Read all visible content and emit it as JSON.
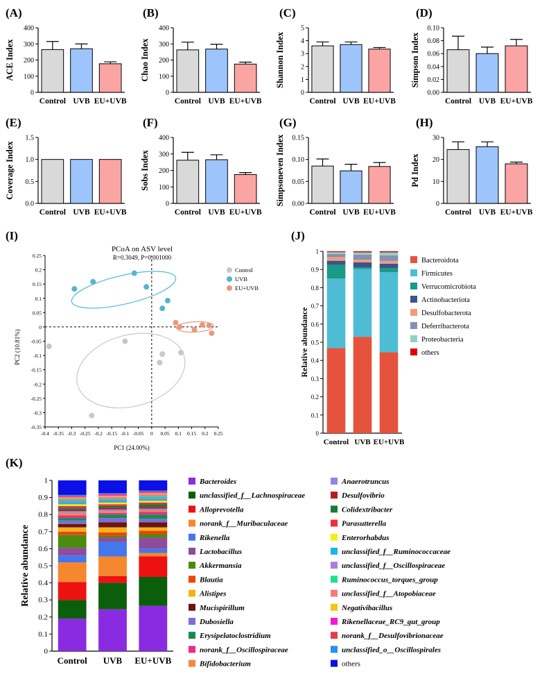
{
  "chart_data": [
    {
      "id": "A",
      "panel_label": "(A)",
      "type": "bar",
      "categories": [
        "Control",
        "UVB",
        "EU+UVB"
      ],
      "values": [
        265,
        270,
        177
      ],
      "errors": [
        50,
        30,
        12
      ],
      "colors": [
        "#d9d9d9",
        "#9ec5fb",
        "#fba4a4"
      ],
      "ylabel": "ACE Index",
      "ylim": [
        0,
        400
      ],
      "yticks": [
        "0",
        "100",
        "200",
        "300",
        "400"
      ]
    },
    {
      "id": "B",
      "panel_label": "(B)",
      "type": "bar",
      "categories": [
        "Control",
        "UVB",
        "EU+UVB"
      ],
      "values": [
        263,
        268,
        175
      ],
      "errors": [
        48,
        30,
        12
      ],
      "colors": [
        "#d9d9d9",
        "#9ec5fb",
        "#fba4a4"
      ],
      "ylabel": "Chao Index",
      "ylim": [
        0,
        400
      ],
      "yticks": [
        "0",
        "100",
        "200",
        "300",
        "400"
      ]
    },
    {
      "id": "C",
      "panel_label": "(C)",
      "type": "bar",
      "categories": [
        "Control",
        "UVB",
        "EU+UVB"
      ],
      "values": [
        3.6,
        3.7,
        3.35
      ],
      "errors": [
        0.3,
        0.2,
        0.12
      ],
      "colors": [
        "#d9d9d9",
        "#9ec5fb",
        "#fba4a4"
      ],
      "ylabel": "Shannon Index",
      "ylim": [
        0,
        5
      ],
      "yticks": [
        "0",
        "1",
        "2",
        "3",
        "4",
        "5"
      ]
    },
    {
      "id": "D",
      "panel_label": "(D)",
      "type": "bar",
      "categories": [
        "Control",
        "UVB",
        "EU+UVB"
      ],
      "values": [
        0.066,
        0.06,
        0.072
      ],
      "errors": [
        0.021,
        0.01,
        0.01
      ],
      "colors": [
        "#d9d9d9",
        "#9ec5fb",
        "#fba4a4"
      ],
      "ylabel": "Simpson Index",
      "ylim": [
        0,
        0.1
      ],
      "yticks": [
        "0.00",
        "0.02",
        "0.04",
        "0.06",
        "0.08",
        "0.10"
      ]
    },
    {
      "id": "E",
      "panel_label": "(E)",
      "type": "bar",
      "categories": [
        "Control",
        "UVB",
        "EU+UVB"
      ],
      "values": [
        1.0,
        1.0,
        1.0
      ],
      "errors": [
        0,
        0,
        0
      ],
      "colors": [
        "#d9d9d9",
        "#9ec5fb",
        "#fba4a4"
      ],
      "ylabel": "Coverage Index",
      "ylim": [
        0,
        1.5
      ],
      "yticks": [
        "0.0",
        "0.5",
        "1.0",
        "1.5"
      ]
    },
    {
      "id": "F",
      "panel_label": "(F)",
      "type": "bar",
      "categories": [
        "Control",
        "UVB",
        "EU+UVB"
      ],
      "values": [
        262,
        265,
        175
      ],
      "errors": [
        48,
        30,
        12
      ],
      "colors": [
        "#d9d9d9",
        "#9ec5fb",
        "#fba4a4"
      ],
      "ylabel": "Sobs Index",
      "ylim": [
        0,
        400
      ],
      "yticks": [
        "0",
        "100",
        "200",
        "300",
        "400"
      ]
    },
    {
      "id": "G",
      "panel_label": "(G)",
      "type": "bar",
      "categories": [
        "Control",
        "UVB",
        "EU+UVB"
      ],
      "values": [
        0.085,
        0.074,
        0.084
      ],
      "errors": [
        0.016,
        0.015,
        0.009
      ],
      "colors": [
        "#d9d9d9",
        "#9ec5fb",
        "#fba4a4"
      ],
      "ylabel": "Simpsoneven Index",
      "ylim": [
        0,
        0.15
      ],
      "yticks": [
        "0.00",
        "0.05",
        "0.10",
        "0.15"
      ]
    },
    {
      "id": "H",
      "panel_label": "(H)",
      "type": "bar",
      "categories": [
        "Control",
        "UVB",
        "EU+UVB"
      ],
      "values": [
        24.5,
        25.8,
        18
      ],
      "errors": [
        3.5,
        2.2,
        0.8
      ],
      "colors": [
        "#d9d9d9",
        "#9ec5fb",
        "#fba4a4"
      ],
      "ylabel": "Pd Index",
      "ylim": [
        0,
        30
      ],
      "yticks": [
        "0",
        "10",
        "20",
        "30"
      ]
    },
    {
      "id": "I",
      "panel_label": "(I)",
      "type": "scatter",
      "title": "PCoA on ASV level",
      "subtitle": "R=0.3049, P=0.001000",
      "xlabel": "PC1 (24.00%)",
      "ylabel": "PC2 (10.81%)",
      "xlim": [
        -0.4,
        0.25
      ],
      "ylim": [
        -0.35,
        0.25
      ],
      "xticks": [
        "-0.4",
        "-0.35",
        "-0.3",
        "-0.25",
        "-0.2",
        "-0.15",
        "-0.1",
        "-0.05",
        "0",
        "0.05",
        "0.1",
        "0.15",
        "0.2",
        "0.25"
      ],
      "yticks": [
        "-0.35",
        "-0.3",
        "-0.25",
        "-0.2",
        "-0.15",
        "-0.1",
        "-0.05",
        "0",
        "0.05",
        "0.1",
        "0.15",
        "0.2",
        "0.25"
      ],
      "series": [
        {
          "name": "Control",
          "color": "#c8c8c8",
          "x": [
            -0.385,
            -0.225,
            -0.1,
            0.04,
            0.03,
            0.11
          ],
          "y": [
            -0.068,
            -0.31,
            -0.05,
            -0.095,
            -0.125,
            -0.09
          ],
          "ellipse": {
            "cx": -0.078,
            "cy": -0.153,
            "rx": 0.207,
            "ry": 0.125,
            "angle": -15
          }
        },
        {
          "name": "UVB",
          "color": "#56b4d3",
          "x": [
            -0.29,
            -0.22,
            -0.065,
            -0.02,
            0.04,
            0.06
          ],
          "y": [
            0.133,
            0.158,
            0.188,
            0.14,
            0.065,
            0.092
          ],
          "ellipse": {
            "cx": -0.105,
            "cy": 0.13,
            "rx": 0.2,
            "ry": 0.05,
            "angle": -13
          }
        },
        {
          "name": "EU+UVB",
          "color": "#e8997c",
          "x": [
            0.09,
            0.105,
            0.16,
            0.19,
            0.215,
            0.225
          ],
          "y": [
            0.015,
            0.0,
            -0.01,
            0.007,
            0.005,
            -0.022
          ],
          "ellipse": {
            "cx": 0.163,
            "cy": 0.0,
            "rx": 0.07,
            "ry": 0.018,
            "angle": -3
          }
        }
      ]
    },
    {
      "id": "J",
      "panel_label": "(J)",
      "type": "stacked_bar",
      "categories": [
        "Control",
        "UVB",
        "EU+UVB"
      ],
      "ylabel": "Relative abundance",
      "ylim": [
        0,
        1
      ],
      "yticks": [
        "0",
        "0.1",
        "0.2",
        "0.3",
        "0.4",
        "0.5",
        "0.6",
        "0.7",
        "0.8",
        "0.9",
        "1"
      ],
      "series": [
        {
          "name": "Bacteroidota",
          "color": "#e5533c",
          "values": [
            0.468,
            0.53,
            0.445
          ]
        },
        {
          "name": "Firmicutes",
          "color": "#4ebcd5",
          "values": [
            0.382,
            0.373,
            0.44
          ]
        },
        {
          "name": "Verrucomicrobiota",
          "color": "#199b85",
          "values": [
            0.075,
            0.008,
            0.022
          ]
        },
        {
          "name": "Actinobacteriota",
          "color": "#3c5488",
          "values": [
            0.023,
            0.028,
            0.025
          ]
        },
        {
          "name": "Desulfobacterota",
          "color": "#f39b7f",
          "values": [
            0.02,
            0.015,
            0.015
          ]
        },
        {
          "name": "Deferribacterota",
          "color": "#8491b4",
          "values": [
            0.017,
            0.028,
            0.03
          ]
        },
        {
          "name": "Proteobacteria",
          "color": "#91d1c2",
          "values": [
            0.01,
            0.012,
            0.017
          ]
        },
        {
          "name": "others",
          "color": "#dc0000",
          "values": [
            0.005,
            0.006,
            0.006
          ]
        }
      ]
    },
    {
      "id": "K",
      "panel_label": "(K)",
      "type": "stacked_bar",
      "categories": [
        "Control",
        "UVB",
        "EU+UVB"
      ],
      "ylabel": "Relative abundance",
      "ylim": [
        0,
        1
      ],
      "yticks": [
        "0",
        "0.1",
        "0.2",
        "0.3",
        "0.4",
        "0.5",
        "0.6",
        "0.7",
        "0.8",
        "0.9",
        "1"
      ],
      "series": [
        {
          "name": "Bacteroides",
          "color": "#8a2be2",
          "values": [
            0.19,
            0.245,
            0.265
          ]
        },
        {
          "name": "unclassified_f__Lachnospiraceae",
          "color": "#0b5e0b",
          "values": [
            0.11,
            0.155,
            0.17
          ]
        },
        {
          "name": "Alloprevotella",
          "color": "#ee1111",
          "values": [
            0.105,
            0.04,
            0.12
          ]
        },
        {
          "name": "norank_f__Muribaculaceae",
          "color": "#f5872f",
          "values": [
            0.115,
            0.115,
            0.02
          ]
        },
        {
          "name": "Rikenella",
          "color": "#4477ee",
          "values": [
            0.04,
            0.085,
            0.025
          ]
        },
        {
          "name": "Lactobacillus",
          "color": "#8d4c9c",
          "values": [
            0.045,
            0.025,
            0.065
          ]
        },
        {
          "name": "Akkermansia",
          "color": "#4c8a10",
          "values": [
            0.075,
            0.01,
            0.02
          ]
        },
        {
          "name": "Blautia",
          "color": "#e8460c",
          "values": [
            0.02,
            0.02,
            0.02
          ]
        },
        {
          "name": "Alistipes",
          "color": "#f5b31a",
          "values": [
            0.025,
            0.03,
            0.02
          ]
        },
        {
          "name": "Mucispirillum",
          "color": "#6b1515",
          "values": [
            0.02,
            0.03,
            0.03
          ]
        },
        {
          "name": "Dubosiella",
          "color": "#7b6fd8",
          "values": [
            0.02,
            0.025,
            0.02
          ]
        },
        {
          "name": "Erysipelatoclostridium",
          "color": "#178a4e",
          "values": [
            0.015,
            0.02,
            0.025
          ]
        },
        {
          "name": "norank_f__Oscillospiraceae",
          "color": "#e62e8a",
          "values": [
            0.015,
            0.01,
            0.015
          ]
        },
        {
          "name": "Bifidobacterium",
          "color": "#f0884a",
          "values": [
            0.015,
            0.01,
            0.01
          ]
        },
        {
          "name": "Anaerotruncus",
          "color": "#8f86e3",
          "values": [
            0.01,
            0.01,
            0.01
          ]
        },
        {
          "name": "Desulfovibrio",
          "color": "#b21e24",
          "values": [
            0.01,
            0.01,
            0.01
          ]
        },
        {
          "name": "Colidextribacter",
          "color": "#177a3c",
          "values": [
            0.01,
            0.01,
            0.015
          ]
        },
        {
          "name": "Parasutterella",
          "color": "#f02d3a",
          "values": [
            0.01,
            0.01,
            0.01
          ]
        },
        {
          "name": "Enterorhabdus",
          "color": "#f5ee1a",
          "values": [
            0.01,
            0.01,
            0.01
          ]
        },
        {
          "name": "unclassified_f__Ruminococcaceae",
          "color": "#1ab8e0",
          "values": [
            0.01,
            0.01,
            0.01
          ]
        },
        {
          "name": "unclassified_f__Oscillospiraceae",
          "color": "#a77fd6",
          "values": [
            0.01,
            0.01,
            0.01
          ]
        },
        {
          "name": "Ruminococcus_torques_group",
          "color": "#1ee08a",
          "values": [
            0.01,
            0.005,
            0.01
          ]
        },
        {
          "name": "unclassified_f__Atopobiaceae",
          "color": "#f57a7a",
          "values": [
            0.005,
            0.01,
            0.01
          ]
        },
        {
          "name": "Negativibacillus",
          "color": "#f5c518",
          "values": [
            0.005,
            0.005,
            0.005
          ]
        },
        {
          "name": "Rikenellaceae_RC9_gut_group",
          "color": "#f516d6",
          "values": [
            0.005,
            0.005,
            0.005
          ]
        },
        {
          "name": "norank_f__Desulfovibrionaceae",
          "color": "#e83b4b",
          "values": [
            0.005,
            0.005,
            0.005
          ]
        },
        {
          "name": "unclassified_o__Oscillospirales",
          "color": "#2d8ef0",
          "values": [
            0.005,
            0.005,
            0.005
          ]
        },
        {
          "name": "others",
          "color": "#0a10e6",
          "values": [
            0.1,
            0.075,
            0.065
          ]
        }
      ]
    }
  ]
}
